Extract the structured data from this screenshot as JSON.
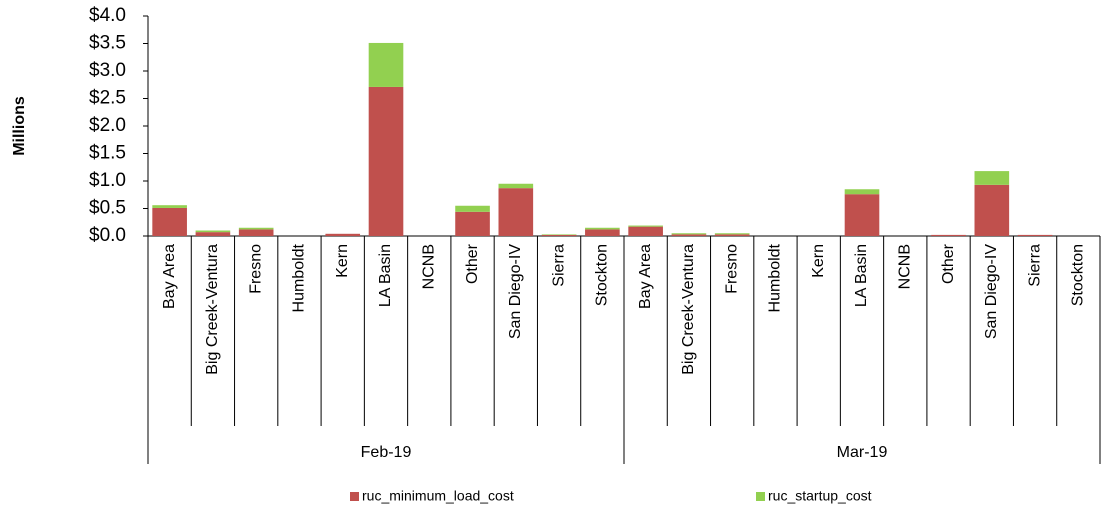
{
  "chart_data": {
    "type": "stacked-bar",
    "y_label": "Millions",
    "groups": [
      {
        "name": "Feb-19",
        "categories": [
          "Bay Area",
          "Big Creek-Ventura",
          "Fresno",
          "Humboldt",
          "Kern",
          "LA Basin",
          "NCNB",
          "Other",
          "San Diego-IV",
          "Sierra",
          "Stockton"
        ]
      },
      {
        "name": "Mar-19",
        "categories": [
          "Bay Area",
          "Big Creek-Ventura",
          "Fresno",
          "Humboldt",
          "Kern",
          "LA Basin",
          "NCNB",
          "Other",
          "San Diego-IV",
          "Sierra",
          "Stockton"
        ]
      }
    ],
    "series": [
      {
        "name": "ruc_minimum_load_cost",
        "color": "#c0504d",
        "values": [
          0.51,
          0.07,
          0.12,
          0,
          0.04,
          2.71,
          0,
          0.44,
          0.87,
          0.02,
          0.12,
          0.17,
          0.03,
          0.03,
          0,
          0,
          0.76,
          0,
          0.02,
          0.93,
          0.02,
          0
        ]
      },
      {
        "name": "ruc_startup_cost",
        "color": "#92d050",
        "values": [
          0.05,
          0.03,
          0.03,
          0,
          0,
          0.8,
          0,
          0.11,
          0.08,
          0.01,
          0.03,
          0.02,
          0.02,
          0.02,
          0,
          0,
          0.09,
          0,
          0,
          0.25,
          0,
          0
        ]
      }
    ],
    "ylim": [
      0,
      4
    ],
    "yticks": [
      {
        "value": 0,
        "label": "$0.0"
      },
      {
        "value": 0.5,
        "label": "$0.5"
      },
      {
        "value": 1,
        "label": "$1.0"
      },
      {
        "value": 1.5,
        "label": "$1.5"
      },
      {
        "value": 2,
        "label": "$2.0"
      },
      {
        "value": 2.5,
        "label": "$2.5"
      },
      {
        "value": 3,
        "label": "$3.0"
      },
      {
        "value": 3.5,
        "label": "$3.5"
      },
      {
        "value": 4,
        "label": "$4.0"
      }
    ],
    "grid": false
  }
}
